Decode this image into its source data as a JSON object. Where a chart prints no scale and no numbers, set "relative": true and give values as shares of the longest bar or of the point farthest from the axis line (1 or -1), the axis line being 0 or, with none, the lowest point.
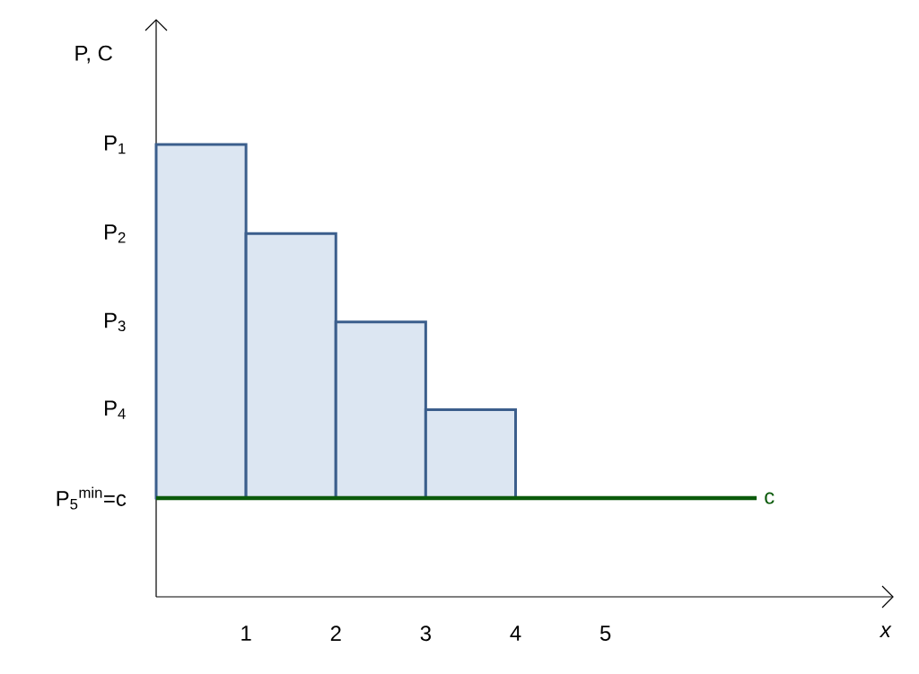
{
  "chart_data": {
    "type": "bar",
    "relative": true,
    "ylabel": "P, C",
    "xlabel": "x",
    "x": [
      0.5,
      1.5,
      2.5,
      3.5
    ],
    "values": [
      1,
      0.748,
      0.498,
      0.25
    ],
    "color": "#dce6f2",
    "xlim": [
      0,
      8.2
    ],
    "xticks": [
      1,
      2,
      3,
      4,
      5
    ],
    "ref_lines": [
      {
        "axis": "y",
        "value": 0,
        "label": "c",
        "color": "#0b5a0b"
      }
    ],
    "annotations": [
      "P$_{1}$",
      "P$_{2}$",
      "P$_{3}$",
      "P$_{4}$",
      "P$_{5}$$^{min}$=c"
    ]
  }
}
